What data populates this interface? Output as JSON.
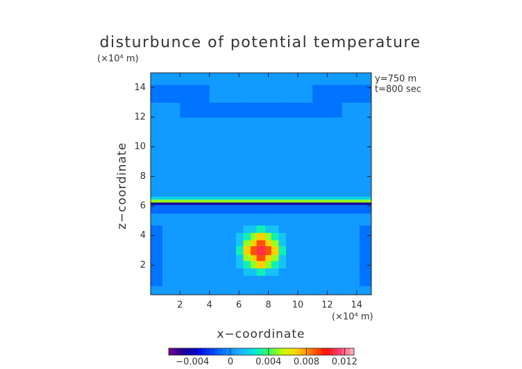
{
  "chart_data": {
    "type": "heatmap",
    "title": "disturbunce of potential temperature",
    "xlabel": "x−coordinate",
    "ylabel": "z−coordinate",
    "xunit": "(×10⁴ m)",
    "yunit": "(×10⁴ m)",
    "annotations": [
      "y=750 m",
      "t=800 sec"
    ],
    "xlim": [
      0,
      15
    ],
    "ylim": [
      0,
      15
    ],
    "xticks": [
      2,
      4,
      6,
      8,
      10,
      12,
      14
    ],
    "yticks": [
      2,
      4,
      6,
      8,
      10,
      12,
      14
    ],
    "x_edges": [
      0,
      0.8,
      2,
      4,
      5.8,
      6.3,
      6.8,
      7.2,
      7.8,
      8.2,
      8.7,
      9.2,
      11,
      13,
      14.2,
      15
    ],
    "y_edges": [
      0,
      0.6,
      1.3,
      1.8,
      2.3,
      2.7,
      3.3,
      3.7,
      4.2,
      4.7,
      5.5,
      6.1,
      6.25,
      6.45,
      6.65,
      12,
      13,
      14.2,
      15
    ],
    "values": [
      [
        0.0003,
        0.0003,
        0.0003,
        0.0003,
        0.0003,
        0.0003,
        0.0003,
        0.0003,
        0.0003,
        0.0003,
        0.0003,
        0.0003,
        0.0003,
        0.0003,
        0.0003
      ],
      [
        -0.0008,
        0.0003,
        0.0003,
        0.0003,
        0.0003,
        0.0003,
        0.0003,
        0.0003,
        0.0003,
        0.0003,
        0.0003,
        0.0003,
        0.0003,
        0.0003,
        -0.0008
      ],
      [
        -0.0008,
        0.0003,
        0.0003,
        0.0003,
        0.0003,
        0.0015,
        0.0015,
        0.003,
        0.0015,
        0.0015,
        0.0003,
        0.0003,
        0.0003,
        0.0003,
        -0.0008
      ],
      [
        -0.0008,
        0.0003,
        0.0003,
        0.0003,
        0.0015,
        0.003,
        0.005,
        0.007,
        0.005,
        0.003,
        0.0015,
        0.0003,
        0.0003,
        0.0003,
        -0.0008
      ],
      [
        -0.0008,
        0.0003,
        0.0003,
        0.0003,
        0.0015,
        0.005,
        0.007,
        0.009,
        0.007,
        0.005,
        0.0015,
        0.0003,
        0.0003,
        0.0003,
        -0.0008
      ],
      [
        -0.0008,
        0.0003,
        0.0003,
        0.0003,
        0.003,
        0.007,
        0.009,
        0.011,
        0.009,
        0.007,
        0.003,
        0.0003,
        0.0003,
        0.0003,
        -0.0008
      ],
      [
        -0.0008,
        0.0003,
        0.0003,
        0.0003,
        0.0015,
        0.005,
        0.007,
        0.009,
        0.007,
        0.005,
        0.0015,
        0.0003,
        0.0003,
        0.0003,
        -0.0008
      ],
      [
        -0.0008,
        0.0003,
        0.0003,
        0.0003,
        0.0015,
        0.003,
        0.005,
        0.007,
        0.005,
        0.003,
        0.0015,
        0.0003,
        0.0003,
        0.0003,
        -0.0008
      ],
      [
        -0.0008,
        0.0003,
        0.0003,
        0.0003,
        0.0003,
        0.0015,
        0.0015,
        0.003,
        0.0015,
        0.0015,
        0.0003,
        0.0003,
        0.0003,
        0.0003,
        -0.0008
      ],
      [
        0.0003,
        0.0003,
        0.0003,
        0.0003,
        0.0003,
        0.0003,
        0.0003,
        0.0003,
        0.0003,
        0.0003,
        0.0003,
        0.0003,
        0.0003,
        0.0003,
        0.0003
      ],
      [
        -0.001,
        -0.001,
        -0.001,
        -0.001,
        -0.001,
        -0.001,
        -0.001,
        -0.001,
        -0.001,
        -0.001,
        -0.001,
        -0.001,
        -0.001,
        -0.001,
        -0.001
      ],
      [
        -0.005,
        -0.005,
        -0.005,
        -0.005,
        -0.005,
        -0.005,
        -0.005,
        -0.005,
        -0.005,
        -0.005,
        -0.005,
        -0.005,
        -0.005,
        -0.005,
        -0.005
      ],
      [
        0.005,
        0.005,
        0.005,
        0.005,
        0.005,
        0.005,
        0.005,
        0.005,
        0.005,
        0.005,
        0.005,
        0.005,
        0.005,
        0.005,
        0.005
      ],
      [
        0.002,
        0.002,
        0.002,
        0.002,
        0.002,
        0.002,
        0.002,
        0.002,
        0.002,
        0.002,
        0.002,
        0.002,
        0.002,
        0.002,
        0.002
      ],
      [
        0.0003,
        0.0003,
        0.0003,
        0.0003,
        0.0003,
        0.0003,
        0.0003,
        0.0003,
        0.0003,
        0.0003,
        0.0003,
        0.0003,
        0.0003,
        0.0003,
        0.0003
      ],
      [
        0.0003,
        0.0003,
        -0.0008,
        -0.0008,
        -0.0008,
        -0.0008,
        -0.0008,
        -0.0008,
        -0.0008,
        -0.0008,
        -0.0008,
        -0.0008,
        -0.0008,
        0.0003,
        0.0003
      ],
      [
        -0.0008,
        -0.0008,
        -0.0008,
        0.0003,
        0.0003,
        0.0003,
        0.0003,
        0.0003,
        0.0003,
        0.0003,
        0.0003,
        0.0003,
        -0.0008,
        -0.0008,
        -0.0008
      ],
      [
        0.0003,
        0.0003,
        0.0003,
        0.0003,
        0.0003,
        0.0003,
        0.0003,
        0.0003,
        0.0003,
        0.0003,
        0.0003,
        0.0003,
        0.0003,
        0.0003,
        0.0003
      ]
    ],
    "colorbar": {
      "lim": [
        -0.0065,
        0.013
      ],
      "ticks": [
        {
          "value": -0.004,
          "label": "−0.004"
        },
        0,
        0.004,
        0.008,
        0.012
      ],
      "colors": [
        "#7a0090",
        "#1a0090",
        "#0000e0",
        "#0040ff",
        "#0080ff",
        "#20b0ff",
        "#00e8e0",
        "#30ff60",
        "#c8ff00",
        "#ffd000",
        "#ff7000",
        "#ff1000",
        "#ff4070",
        "#ffb8c0"
      ]
    }
  }
}
